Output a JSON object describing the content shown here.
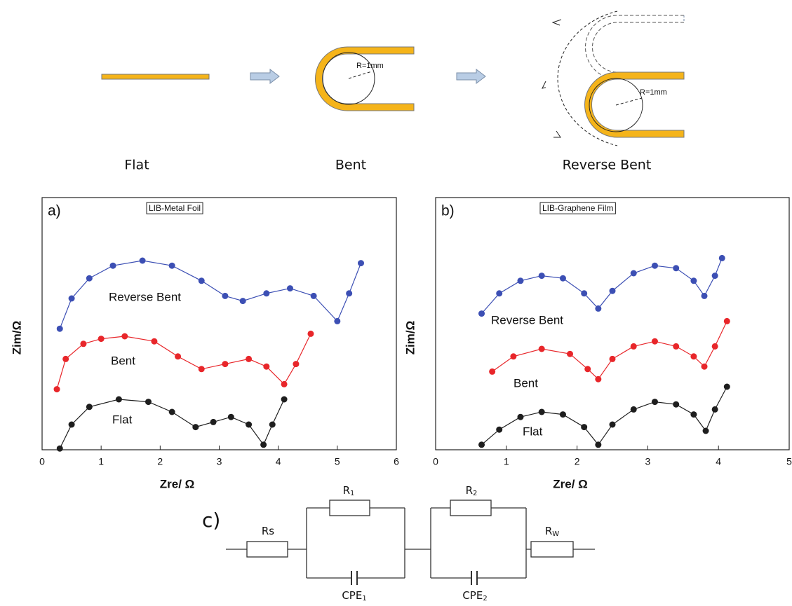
{
  "schematic": {
    "states": [
      "Flat",
      "Bent",
      "Reverse Bent"
    ],
    "radius_labels": [
      "R=1mm",
      "R=1mm"
    ]
  },
  "chart_data": [
    {
      "type": "line",
      "panel": "a)",
      "title": "LIB-Metal Foil",
      "xlabel": "Zre/ Ω",
      "ylabel": "Zim/Ω",
      "xlim": [
        0,
        6
      ],
      "xticks": [
        0,
        1,
        2,
        3,
        4,
        5,
        6
      ],
      "ylim": [
        0,
        10
      ],
      "markers": true,
      "series": [
        {
          "name": "Reverse Bent",
          "color": "#3c4fb4",
          "x": [
            0.3,
            0.5,
            0.8,
            1.2,
            1.7,
            2.2,
            2.7,
            3.1,
            3.4,
            3.8,
            4.2,
            4.6,
            5.0,
            5.2,
            5.4
          ],
          "values": [
            4.8,
            6.0,
            6.8,
            7.3,
            7.5,
            7.3,
            6.7,
            6.1,
            5.9,
            6.2,
            6.4,
            6.1,
            5.1,
            6.2,
            7.4
          ]
        },
        {
          "name": "Bent",
          "color": "#e8262a",
          "x": [
            0.25,
            0.4,
            0.7,
            1.0,
            1.4,
            1.9,
            2.3,
            2.7,
            3.1,
            3.5,
            3.8,
            4.1,
            4.3,
            4.55
          ],
          "values": [
            2.4,
            3.6,
            4.2,
            4.4,
            4.5,
            4.3,
            3.7,
            3.2,
            3.4,
            3.6,
            3.3,
            2.6,
            3.4,
            4.6
          ]
        },
        {
          "name": "Flat",
          "color": "#1e1e1e",
          "x": [
            0.3,
            0.5,
            0.8,
            1.3,
            1.8,
            2.2,
            2.6,
            2.9,
            3.2,
            3.5,
            3.75,
            3.9,
            4.1
          ],
          "values": [
            0.05,
            1.0,
            1.7,
            2.0,
            1.9,
            1.5,
            0.9,
            1.1,
            1.3,
            1.0,
            0.2,
            1.0,
            2.0
          ]
        }
      ]
    },
    {
      "type": "line",
      "panel": "b)",
      "title": "LIB-Graphene Film",
      "xlabel": "Zre/ Ω",
      "ylabel": "Zim/Ω",
      "xlim": [
        0,
        5
      ],
      "xticks": [
        0,
        1,
        2,
        3,
        4,
        5
      ],
      "ylim": [
        0,
        10
      ],
      "markers": true,
      "series": [
        {
          "name": "Reverse Bent",
          "color": "#3c4fb4",
          "x": [
            0.65,
            0.9,
            1.2,
            1.5,
            1.8,
            2.1,
            2.3,
            2.5,
            2.8,
            3.1,
            3.4,
            3.65,
            3.8,
            3.95,
            4.05
          ],
          "values": [
            5.4,
            6.2,
            6.7,
            6.9,
            6.8,
            6.2,
            5.6,
            6.3,
            7.0,
            7.3,
            7.2,
            6.7,
            6.1,
            6.9,
            7.6
          ]
        },
        {
          "name": "Bent",
          "color": "#e8262a",
          "x": [
            0.8,
            1.1,
            1.5,
            1.9,
            2.15,
            2.3,
            2.5,
            2.8,
            3.1,
            3.4,
            3.65,
            3.8,
            3.95,
            4.12
          ],
          "values": [
            3.1,
            3.7,
            4.0,
            3.8,
            3.2,
            2.8,
            3.6,
            4.1,
            4.3,
            4.1,
            3.7,
            3.3,
            4.1,
            5.1
          ]
        },
        {
          "name": "Flat",
          "color": "#1e1e1e",
          "x": [
            0.65,
            0.9,
            1.2,
            1.5,
            1.8,
            2.1,
            2.3,
            2.5,
            2.8,
            3.1,
            3.4,
            3.65,
            3.82,
            3.95,
            4.12
          ],
          "values": [
            0.2,
            0.8,
            1.3,
            1.5,
            1.4,
            0.9,
            0.2,
            1.0,
            1.6,
            1.9,
            1.8,
            1.4,
            0.75,
            1.6,
            2.5
          ]
        }
      ]
    }
  ],
  "circuit": {
    "panel": "c)",
    "labels": [
      {
        "main": "Rs"
      },
      {
        "main": "R",
        "sub": "1"
      },
      {
        "main": "CPE",
        "sub": "1"
      },
      {
        "main": "R",
        "sub": "2"
      },
      {
        "main": "CPE",
        "sub": "2"
      },
      {
        "main": "R",
        "sub": "W"
      }
    ]
  }
}
